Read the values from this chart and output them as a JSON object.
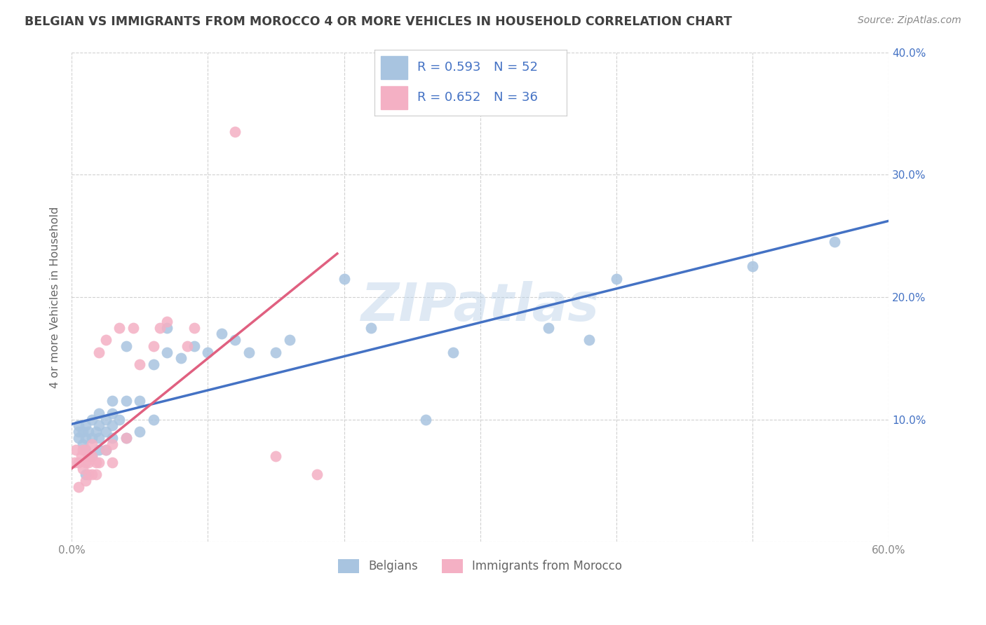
{
  "title": "BELGIAN VS IMMIGRANTS FROM MOROCCO 4 OR MORE VEHICLES IN HOUSEHOLD CORRELATION CHART",
  "source": "Source: ZipAtlas.com",
  "ylabel": "4 or more Vehicles in Household",
  "watermark": "ZIPatlas",
  "belgian_R": 0.593,
  "belgian_N": 52,
  "morocco_R": 0.652,
  "morocco_N": 36,
  "xlim": [
    0.0,
    0.6
  ],
  "ylim": [
    0.0,
    0.4
  ],
  "xticks": [
    0.0,
    0.1,
    0.2,
    0.3,
    0.4,
    0.5,
    0.6
  ],
  "yticks": [
    0.0,
    0.1,
    0.2,
    0.3,
    0.4
  ],
  "belgian_color": "#a8c4e0",
  "morocco_color": "#f4b0c4",
  "belgian_line_color": "#4472c4",
  "morocco_line_color": "#e06080",
  "background_color": "#ffffff",
  "grid_color": "#cccccc",
  "title_color": "#404040",
  "axis_label_color": "#4472c4",
  "belgians_x": [
    0.005,
    0.005,
    0.005,
    0.008,
    0.008,
    0.01,
    0.01,
    0.01,
    0.01,
    0.012,
    0.015,
    0.015,
    0.015,
    0.018,
    0.02,
    0.02,
    0.02,
    0.02,
    0.025,
    0.025,
    0.025,
    0.03,
    0.03,
    0.03,
    0.03,
    0.035,
    0.04,
    0.04,
    0.04,
    0.05,
    0.05,
    0.06,
    0.06,
    0.07,
    0.07,
    0.08,
    0.09,
    0.1,
    0.11,
    0.12,
    0.13,
    0.15,
    0.16,
    0.2,
    0.22,
    0.26,
    0.28,
    0.35,
    0.38,
    0.4,
    0.5,
    0.56
  ],
  "belgians_y": [
    0.085,
    0.09,
    0.095,
    0.08,
    0.09,
    0.055,
    0.075,
    0.085,
    0.095,
    0.09,
    0.07,
    0.085,
    0.1,
    0.09,
    0.075,
    0.085,
    0.095,
    0.105,
    0.075,
    0.09,
    0.1,
    0.085,
    0.095,
    0.105,
    0.115,
    0.1,
    0.085,
    0.115,
    0.16,
    0.09,
    0.115,
    0.1,
    0.145,
    0.155,
    0.175,
    0.15,
    0.16,
    0.155,
    0.17,
    0.165,
    0.155,
    0.155,
    0.165,
    0.215,
    0.175,
    0.1,
    0.155,
    0.175,
    0.165,
    0.215,
    0.225,
    0.245
  ],
  "morocco_x": [
    0.002,
    0.003,
    0.005,
    0.005,
    0.007,
    0.008,
    0.008,
    0.01,
    0.01,
    0.01,
    0.012,
    0.012,
    0.012,
    0.015,
    0.015,
    0.015,
    0.018,
    0.018,
    0.02,
    0.02,
    0.025,
    0.025,
    0.03,
    0.03,
    0.035,
    0.04,
    0.045,
    0.05,
    0.06,
    0.065,
    0.07,
    0.085,
    0.09,
    0.12,
    0.15,
    0.18
  ],
  "morocco_y": [
    0.065,
    0.075,
    0.045,
    0.065,
    0.07,
    0.06,
    0.075,
    0.05,
    0.065,
    0.075,
    0.055,
    0.065,
    0.07,
    0.055,
    0.07,
    0.08,
    0.055,
    0.065,
    0.065,
    0.155,
    0.075,
    0.165,
    0.065,
    0.08,
    0.175,
    0.085,
    0.175,
    0.145,
    0.16,
    0.175,
    0.18,
    0.16,
    0.175,
    0.335,
    0.07,
    0.055
  ],
  "morocco_line_x0": 0.0,
  "morocco_line_y0": 0.06,
  "morocco_line_x1": 0.2,
  "morocco_line_y1": 0.24
}
